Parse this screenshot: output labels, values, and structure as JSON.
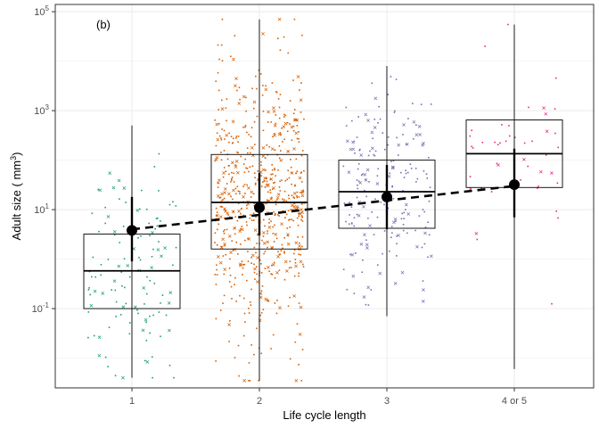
{
  "chart_data": {
    "type": "boxplot",
    "panel_label": "(b)",
    "xlabel": "Life cycle length",
    "ylabel_prefix": "Adult size ( mm",
    "ylabel_sup": "3",
    "ylabel_suffix": ")",
    "y_scale": "log10",
    "ylim": [
      0.0025,
      140000
    ],
    "y_ticks": [
      {
        "value": 0.1,
        "base": "10",
        "exp": "-1"
      },
      {
        "value": 10,
        "base": "10",
        "exp": "1"
      },
      {
        "value": 1000,
        "base": "10",
        "exp": "3"
      },
      {
        "value": 100000,
        "base": "10",
        "exp": "5"
      }
    ],
    "grid": true,
    "legend": "none",
    "categories": [
      "1",
      "2",
      "3",
      "4 or 5"
    ],
    "colors": [
      "#1b9e77",
      "#d95f02",
      "#7570b3",
      "#e7298a"
    ],
    "boxes": [
      {
        "category": "1",
        "q1": 0.1,
        "median": 0.58,
        "q3": 3.2
      },
      {
        "category": "2",
        "q1": 1.6,
        "median": 14,
        "q3": 130
      },
      {
        "category": "3",
        "q1": 4.2,
        "median": 23,
        "q3": 100
      },
      {
        "category": "4 or 5",
        "q1": 28,
        "median": 135,
        "q3": 650
      }
    ],
    "means": [
      {
        "category": "1",
        "mean": 3.8,
        "inner": [
          0.9,
          18
        ],
        "outer": [
          0.004,
          500
        ]
      },
      {
        "category": "2",
        "mean": 11,
        "inner": [
          3.0,
          55
        ],
        "outer": [
          0.0035,
          70000
        ]
      },
      {
        "category": "3",
        "mean": 18,
        "inner": [
          4.0,
          80
        ],
        "outer": [
          0.07,
          8000
        ]
      },
      {
        "category": "4 or 5",
        "mean": 32,
        "inner": [
          7.0,
          170
        ],
        "outer": [
          0.006,
          55000
        ]
      }
    ],
    "trend": {
      "style": "dashed",
      "x_from": "1",
      "x_to": "4 or 5",
      "y_from": 4.0,
      "y_to": 30
    },
    "point_counts": [
      120,
      650,
      200,
      45
    ]
  }
}
